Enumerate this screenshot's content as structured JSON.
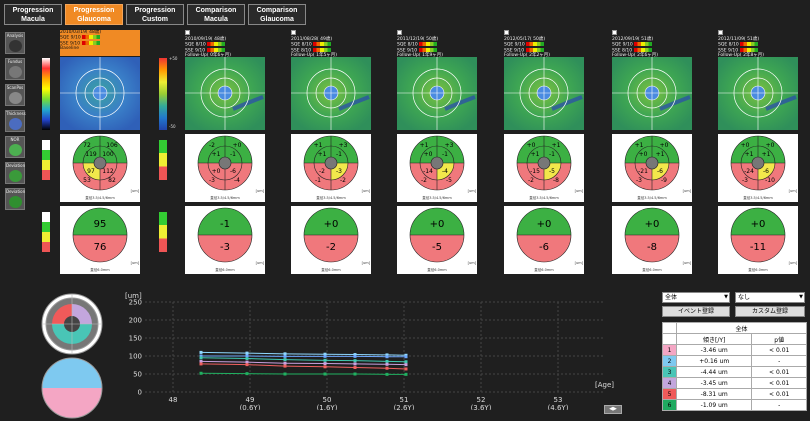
{
  "tabs": [
    {
      "label": "Progression\nMacula",
      "active": false
    },
    {
      "label": "Progression\nGlaucoma",
      "active": true
    },
    {
      "label": "Progression\nCustom",
      "active": false
    },
    {
      "label": "Comparison\nMacula",
      "active": false
    },
    {
      "label": "Comparison\nGlaucoma",
      "active": false
    }
  ],
  "tools": [
    "Analysis",
    "Fundus",
    "ScanPos",
    "Thickness",
    "NOR",
    "Deviation",
    "Deviation"
  ],
  "scale_top": [
    "+50",
    "-50"
  ],
  "exams": [
    {
      "date": "2010/03/19( 48歳)",
      "sq1": "SQE 9/10",
      "sq2": "SSE 9/10",
      "follow": "Baseline",
      "baseline": true,
      "sectors": [
        "72",
        "106",
        "119",
        "100",
        "97",
        "112",
        "53",
        "82"
      ],
      "upper": "95",
      "lower": "76"
    },
    {
      "date": "2010/09/19( 48歳)",
      "sq1": "SQE 8/10",
      "sq2": "SSE 9/10",
      "follow": "Follow-Up( 0年6ヶ月)",
      "baseline": false,
      "sectors": [
        "-2",
        "+0",
        "+1",
        "-1",
        "+0",
        "-6",
        "-3",
        "-4"
      ],
      "upper": "-1",
      "lower": "-3"
    },
    {
      "date": "2011/08/28( 49歳)",
      "sq1": "SQE 8/10",
      "sq2": "SSE 8/10",
      "follow": "Follow-Up( 1年5ヶ月)",
      "baseline": false,
      "sectors": [
        "+1",
        "+3",
        "+1",
        "-1",
        "-2",
        "-3",
        "-1",
        "-2"
      ],
      "upper": "+0",
      "lower": "-2"
    },
    {
      "date": "2011/12/19( 50歳)",
      "sq1": "SQE 8/10",
      "sq2": "SSE 9/10",
      "follow": "Follow-Up( 1年9ヶ月)",
      "baseline": false,
      "sectors": [
        "+1",
        "+3",
        "+0",
        "-1",
        "-14",
        "-4",
        "-2",
        "-5"
      ],
      "upper": "+0",
      "lower": "-5"
    },
    {
      "date": "2012/05/17( 50歳)",
      "sq1": "SQE 9/10",
      "sq2": "SSE 9/10",
      "follow": "Follow-Up( 2年2ヶ月)",
      "baseline": false,
      "sectors": [
        "+0",
        "+1",
        "+1",
        "-1",
        "-15",
        "-5",
        "-2",
        "-8"
      ],
      "upper": "+0",
      "lower": "-6"
    },
    {
      "date": "2012/09/19( 51歳)",
      "sq1": "SQE 9/10",
      "sq2": "SSE 8/10",
      "follow": "Follow-Up( 2年6ヶ月)",
      "baseline": false,
      "sectors": [
        "+1",
        "+0",
        "+0",
        "+1",
        "-21",
        "-6",
        "-3",
        "-9"
      ],
      "upper": "+0",
      "lower": "-8"
    },
    {
      "date": "2012/11/09( 51歳)",
      "sq1": "SQE 8/10",
      "sq2": "SSE 9/10",
      "follow": "Follow-Up( 2年8ヶ月)",
      "baseline": false,
      "sectors": [
        "+0",
        "+0",
        "+1",
        "+1",
        "-24",
        "-6",
        "-3",
        "-10"
      ],
      "upper": "+0",
      "lower": "-11"
    }
  ],
  "panel_note": "直径3.5/4.5/6mm",
  "panel_note2": "直径6.0mm",
  "um_label": "[um]",
  "graph": {
    "y_unit": "[um]",
    "y_ticks": [
      "250",
      "200",
      "150",
      "100",
      "50",
      "0"
    ],
    "x_ticks": [
      "48",
      "49",
      "50",
      "51",
      "52",
      "53"
    ],
    "x_sub": [
      "(0.6Y)",
      "(1.6Y)",
      "(2.6Y)",
      "(3.6Y)",
      "(4.6Y)"
    ],
    "x_unit": "[Age]",
    "series_colors": [
      "#8fd8ff",
      "#6ea8ff",
      "#40c8b0",
      "#c8a0e0",
      "#f06060",
      "#20b060"
    ]
  },
  "controls": {
    "select1": "全体",
    "select2": "なし",
    "event_button": "イベント登録",
    "custom_button": "カスタム登録"
  },
  "trend": {
    "title": "全体",
    "col_slope": "傾き[/Y]",
    "col_p": "p値",
    "rows": [
      {
        "idx": "1",
        "slope": "-3.46 um",
        "p": "< 0.01",
        "color": "#f4a6c4"
      },
      {
        "idx": "2",
        "slope": "+0.16 um",
        "p": "-",
        "color": "#7ec9f0"
      },
      {
        "idx": "3",
        "slope": "-4.44 um",
        "p": "< 0.01",
        "color": "#49c5b6"
      },
      {
        "idx": "4",
        "slope": "-3.45 um",
        "p": "< 0.01",
        "color": "#c3a6dd"
      },
      {
        "idx": "5",
        "slope": "-8.31 um",
        "p": "< 0.01",
        "color": "#f05a5a"
      },
      {
        "idx": "6",
        "slope": "-1.09 um",
        "p": "-",
        "color": "#1faa60"
      }
    ]
  }
}
